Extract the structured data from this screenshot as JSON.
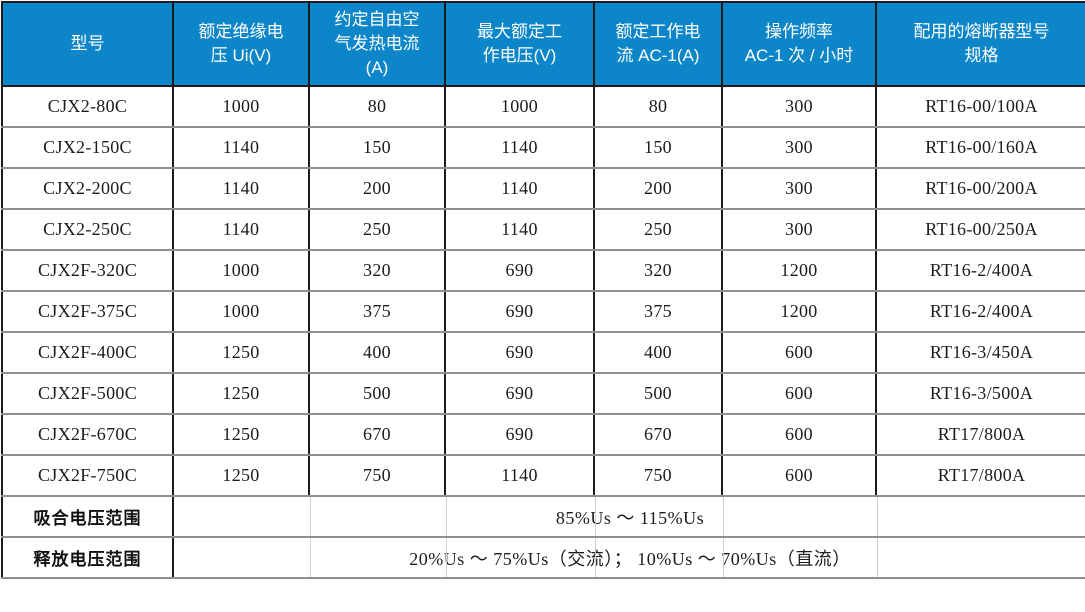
{
  "table": {
    "columns": [
      {
        "label": "型号"
      },
      {
        "label": "额定绝缘电\n压 Ui(V)"
      },
      {
        "label": "约定自由空\n气发热电流\n(A)"
      },
      {
        "label": "最大额定工\n作电压(V)"
      },
      {
        "label": "额定工作电\n流 AC-1(A)"
      },
      {
        "label": "操作频率\nAC-1 次 / 小时"
      },
      {
        "label": "配用的熔断器型号\n规格"
      }
    ],
    "rows": [
      [
        "CJX2-80C",
        "1000",
        "80",
        "1000",
        "80",
        "300",
        "RT16-00/100A"
      ],
      [
        "CJX2-150C",
        "1140",
        "150",
        "1140",
        "150",
        "300",
        "RT16-00/160A"
      ],
      [
        "CJX2-200C",
        "1140",
        "200",
        "1140",
        "200",
        "300",
        "RT16-00/200A"
      ],
      [
        "CJX2-250C",
        "1140",
        "250",
        "1140",
        "250",
        "300",
        "RT16-00/250A"
      ],
      [
        "CJX2F-320C",
        "1000",
        "320",
        "690",
        "320",
        "1200",
        "RT16-2/400A"
      ],
      [
        "CJX2F-375C",
        "1000",
        "375",
        "690",
        "375",
        "1200",
        "RT16-2/400A"
      ],
      [
        "CJX2F-400C",
        "1250",
        "400",
        "690",
        "400",
        "600",
        "RT16-3/450A"
      ],
      [
        "CJX2F-500C",
        "1250",
        "500",
        "690",
        "500",
        "600",
        "RT16-3/500A"
      ],
      [
        "CJX2F-670C",
        "1250",
        "670",
        "690",
        "670",
        "600",
        "RT17/800A"
      ],
      [
        "CJX2F-750C",
        "1250",
        "750",
        "1140",
        "750",
        "600",
        "RT17/800A"
      ]
    ],
    "footer_rows": [
      {
        "label": "吸合电压范围",
        "value": "85%Us ～ 115%Us"
      },
      {
        "label": "释放电压范围",
        "value": "20%Us ～ 75%Us（交流）； 10%Us ～ 70%Us（直流）"
      }
    ],
    "colors": {
      "header_bg": "#0c86c8",
      "header_text": "#ffffff",
      "grid_dark": "#1b1b1b",
      "grid_light": "#8f8f8f",
      "body_text": "#1c1c1c"
    }
  }
}
